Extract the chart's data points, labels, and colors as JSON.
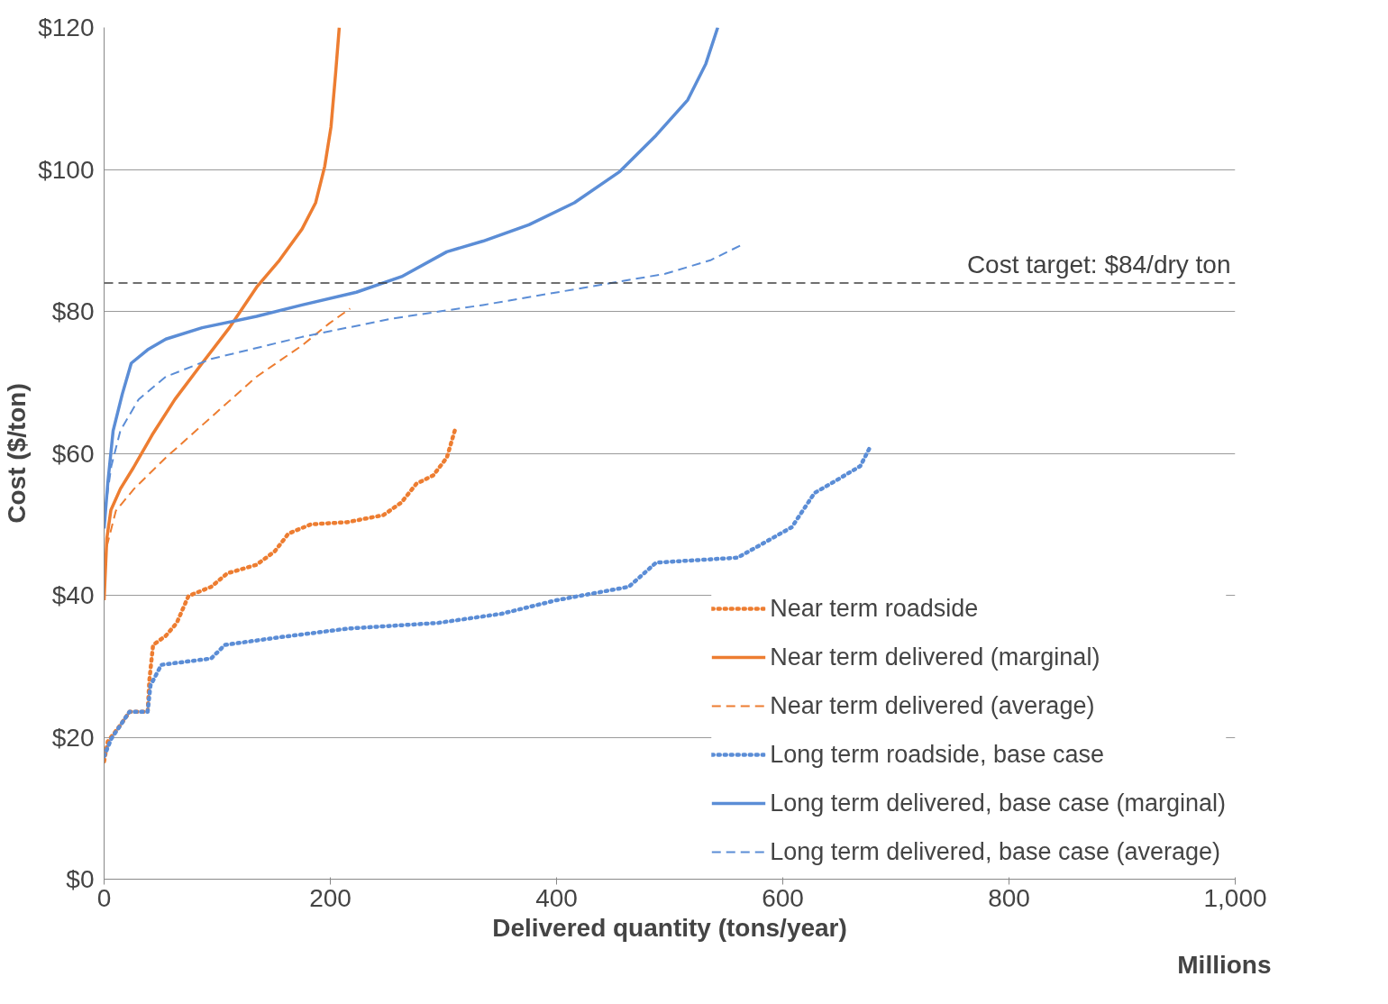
{
  "chart_data": {
    "type": "line",
    "xlabel": "Delivered quantity (tons/year)",
    "ylabel": "Cost ($/ton)",
    "xlim": [
      0,
      1000
    ],
    "xticks": [
      0,
      200,
      400,
      600,
      800,
      {
        "value": 1000,
        "label": "1,000"
      }
    ],
    "ylim": [
      0,
      120
    ],
    "yticks": [
      {
        "value": 0,
        "label": "$0"
      },
      {
        "value": 20,
        "label": "$20"
      },
      {
        "value": 40,
        "label": "$40"
      },
      {
        "value": 60,
        "label": "$60"
      },
      {
        "value": 80,
        "label": "$80"
      },
      {
        "value": 100,
        "label": "$100"
      },
      {
        "value": 120,
        "label": "$120"
      }
    ],
    "grid": "y",
    "legend": "bottom right",
    "annotations": [
      "Millions"
    ],
    "ref_lines": [
      {
        "axis": "y",
        "value": 84,
        "label": "Cost target: $84/dry ton",
        "color": "#404040",
        "line_style": "dashed"
      }
    ],
    "series": [
      {
        "name": "Near term roadside",
        "color": "#ed7d31",
        "line_style": "dotted",
        "x": [
          0,
          3.2,
          14.4,
          22.5,
          38.5,
          40,
          43.3,
          54.6,
          64.2,
          74.6,
          94.7,
          109,
          134.8,
          150.9,
          163,
          183,
          215,
          247,
          263,
          276,
          291,
          303,
          310
        ],
        "values": [
          16.6,
          19.4,
          21.7,
          23.6,
          23.6,
          28,
          33,
          34.3,
          36.1,
          39.9,
          41.2,
          43.1,
          44.3,
          46.2,
          48.7,
          50,
          50.3,
          51.3,
          53.1,
          55.7,
          56.9,
          59.4,
          63.2
        ]
      },
      {
        "name": "Near term delivered (marginal)",
        "color": "#ed7d31",
        "line_style": "solid",
        "x": [
          0,
          2.4,
          6,
          14.4,
          26,
          42.5,
          62.6,
          86.7,
          110.8,
          134.8,
          155,
          175,
          187,
          195,
          200.6,
          204.7,
          207.9
        ],
        "values": [
          39.3,
          48,
          52,
          55,
          58,
          62.6,
          67.6,
          72.7,
          77.7,
          83.4,
          87.2,
          91.6,
          95.3,
          100.4,
          106,
          113.6,
          120
        ]
      },
      {
        "name": "Near term delivered (average)",
        "color": "#ed7d31",
        "line_style": "dashed",
        "x": [
          2.4,
          10.4,
          26.5,
          54.6,
          94.7,
          134.8,
          175,
          199,
          217.5
        ],
        "values": [
          46.9,
          51.9,
          55,
          59.4,
          65.1,
          70.8,
          75.2,
          78.3,
          80.4
        ]
      },
      {
        "name": "Long term roadside, base case",
        "color": "#5b8dd6",
        "line_style": "dotted",
        "x": [
          0,
          6.4,
          22.5,
          38.5,
          41,
          50.6,
          94.7,
          106.7,
          150.9,
          215,
          295,
          351.5,
          399.7,
          463.9,
          488,
          560,
          578,
          608,
          628,
          648.5,
          668.5,
          676.6
        ],
        "values": [
          17.3,
          19.8,
          23.6,
          23.6,
          27.3,
          30.2,
          31.1,
          33,
          34,
          35.3,
          36.1,
          37.4,
          39.3,
          41.2,
          44.6,
          45.3,
          46.9,
          49.6,
          54.4,
          56.3,
          58.2,
          60.7
        ]
      },
      {
        "name": "Long term delivered, base case (marginal)",
        "color": "#5b8dd6",
        "line_style": "solid",
        "x": [
          0,
          3.2,
          8,
          16,
          24,
          38.5,
          54.6,
          86.7,
          134.8,
          175,
          223,
          263,
          303,
          335,
          375.6,
          415.7,
          455.9,
          488,
          516,
          532,
          542.5
        ],
        "values": [
          49.4,
          55.7,
          63.2,
          68.3,
          72.7,
          74.6,
          76.1,
          77.7,
          79.3,
          80.9,
          82.7,
          84.9,
          88.4,
          89.9,
          92.2,
          95.3,
          99.7,
          104.8,
          109.8,
          114.9,
          120
        ]
      },
      {
        "name": "Long term delivered, base case (average)",
        "color": "#5b8dd6",
        "line_style": "dashed",
        "x": [
          0.8,
          6.4,
          14.4,
          30.5,
          54.6,
          94.7,
          175,
          255,
          335,
          415.7,
          496,
          536,
          564
        ],
        "values": [
          51.9,
          58.2,
          63.2,
          67.6,
          70.8,
          73.3,
          76.4,
          79,
          80.9,
          83.1,
          85.3,
          87.2,
          89.4
        ]
      }
    ]
  }
}
